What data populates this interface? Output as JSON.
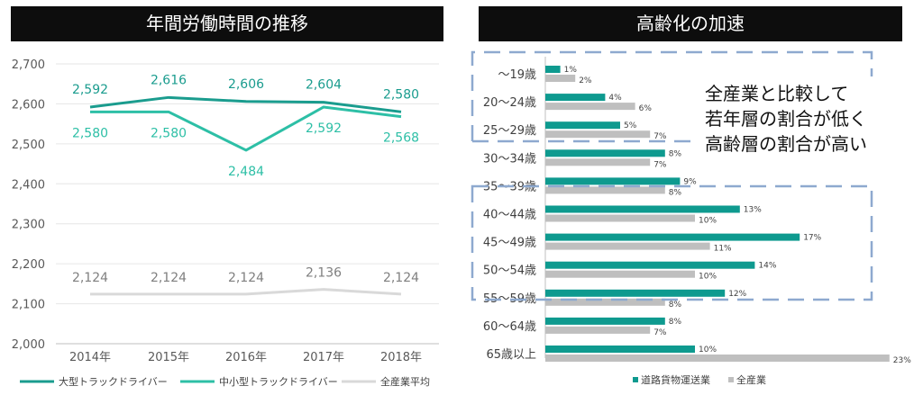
{
  "colors": {
    "large": "#1a9c8e",
    "small": "#2dbfa6",
    "industry": "#d9d9d9",
    "road": "#0e9a8f",
    "all": "#bfbfbf",
    "frame": "#8ea9cf"
  },
  "chart_data": [
    {
      "type": "line",
      "title": "年間労働時間の推移",
      "categories": [
        "2014年",
        "2015年",
        "2016年",
        "2017年",
        "2018年"
      ],
      "ylim": [
        2000,
        2700
      ],
      "yticks": [
        "2,000",
        "2,100",
        "2,200",
        "2,300",
        "2,400",
        "2,500",
        "2,600",
        "2,700"
      ],
      "grid": true,
      "legend_position": "bottom",
      "series": [
        {
          "name": "大型トラックドライバー",
          "values": [
            2592,
            2616,
            2606,
            2604,
            2580
          ],
          "labels": [
            "2,592",
            "2,616",
            "2,606",
            "2,604",
            "2,580"
          ]
        },
        {
          "name": "中小型トラックドライバー",
          "values": [
            2580,
            2580,
            2484,
            2592,
            2568
          ],
          "labels": [
            "2,580",
            "2,580",
            "2,484",
            "2,592",
            "2,568"
          ]
        },
        {
          "name": "全産業平均",
          "values": [
            2124,
            2124,
            2124,
            2136,
            2124
          ],
          "labels": [
            "2,124",
            "2,124",
            "2,124",
            "2,136",
            "2,124"
          ]
        }
      ]
    },
    {
      "type": "bar",
      "orientation": "horizontal",
      "title": "高齢化の加速",
      "categories": [
        "～19歳",
        "20～24歳",
        "25～29歳",
        "30～34歳",
        "35～39歳",
        "40～44歳",
        "45～49歳",
        "50～54歳",
        "55～59歳",
        "60～64歳",
        "65歳以上"
      ],
      "legend_position": "bottom",
      "series": [
        {
          "name": "道路貨物運送業",
          "values": [
            1,
            4,
            5,
            8,
            9,
            13,
            17,
            14,
            12,
            8,
            10
          ],
          "labels": [
            "1%",
            "4%",
            "5%",
            "8%",
            "9%",
            "13%",
            "17%",
            "14%",
            "12%",
            "8%",
            "10%"
          ]
        },
        {
          "name": "全産業",
          "values": [
            2,
            6,
            7,
            7,
            8,
            10,
            11,
            10,
            8,
            7,
            23
          ],
          "labels": [
            "2%",
            "6%",
            "7%",
            "7%",
            "8%",
            "10%",
            "11%",
            "10%",
            "8%",
            "7%",
            "23%"
          ]
        }
      ],
      "annotation": [
        "全産業と比較して",
        "若年層の割合が低く",
        "高齢層の割合が高い"
      ]
    }
  ]
}
